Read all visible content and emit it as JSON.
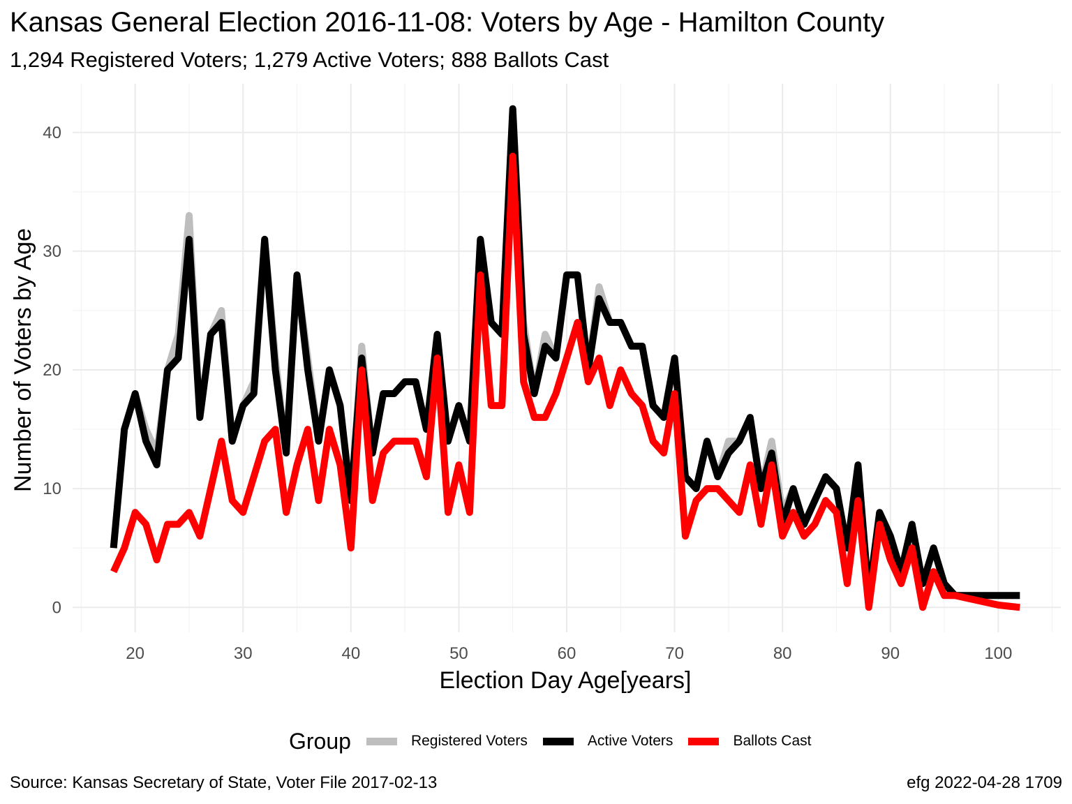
{
  "title": "Kansas General Election 2016-11-08:  Voters by Age - Hamilton County",
  "subtitle": "1,294 Registered Voters; 1,279 Active Voters; 888 Ballots Cast",
  "caption_left": "Source:  Kansas Secretary of State, Voter File  2017-02-13",
  "caption_right": "efg 2022-04-28 1709",
  "legend": {
    "title": "Group",
    "items": [
      {
        "label": "Registered Voters",
        "color": "#bebebe"
      },
      {
        "label": "Active Voters",
        "color": "#000000"
      },
      {
        "label": "Ballots Cast",
        "color": "#ff0000"
      }
    ]
  },
  "chart_data": {
    "type": "line",
    "xlabel": "Election Day Age[years]",
    "ylabel": "Number of Voters by Age",
    "xlim": [
      14.2,
      105.8
    ],
    "ylim": [
      -2.1,
      44.1
    ],
    "xticks": [
      20,
      30,
      40,
      50,
      60,
      70,
      80,
      90,
      100
    ],
    "yticks": [
      0,
      10,
      20,
      30,
      40
    ],
    "grid": true,
    "legend_position": "bottom",
    "x": [
      18,
      19,
      20,
      21,
      22,
      23,
      24,
      25,
      26,
      27,
      28,
      29,
      30,
      31,
      32,
      33,
      34,
      35,
      36,
      37,
      38,
      39,
      40,
      41,
      42,
      43,
      44,
      45,
      46,
      47,
      48,
      49,
      50,
      51,
      52,
      53,
      54,
      55,
      56,
      57,
      58,
      59,
      60,
      61,
      62,
      63,
      64,
      65,
      66,
      67,
      68,
      69,
      70,
      71,
      72,
      73,
      74,
      75,
      76,
      77,
      78,
      79,
      80,
      81,
      82,
      83,
      84,
      85,
      86,
      87,
      88,
      89,
      90,
      91,
      92,
      93,
      94,
      95,
      96,
      97,
      98,
      99,
      100,
      101,
      102
    ],
    "series": [
      {
        "name": "Registered Voters",
        "color": "#bebebe",
        "values": [
          5,
          15,
          18,
          15,
          13,
          20,
          23,
          33,
          16,
          23,
          25,
          14,
          17,
          19,
          31,
          21,
          13,
          28,
          21,
          14,
          20,
          17,
          9,
          22,
          13,
          18,
          18,
          19,
          19,
          15,
          23,
          14,
          17,
          14,
          31,
          24,
          23,
          42,
          24,
          18,
          23,
          21,
          28,
          28,
          20,
          27,
          24,
          24,
          22,
          22,
          17,
          16,
          21,
          11,
          10,
          14,
          11,
          14,
          14,
          16,
          10,
          14,
          8,
          10,
          7,
          9,
          11,
          10,
          5,
          12,
          1,
          8,
          6,
          3,
          7,
          2,
          5,
          2,
          1,
          1,
          1,
          1,
          1,
          1,
          1
        ]
      },
      {
        "name": "Active Voters",
        "color": "#000000",
        "values": [
          5,
          15,
          18,
          14,
          12,
          20,
          21,
          31,
          16,
          23,
          24,
          14,
          17,
          18,
          31,
          20,
          13,
          28,
          20,
          14,
          20,
          17,
          9,
          21,
          13,
          18,
          18,
          19,
          19,
          15,
          23,
          14,
          17,
          14,
          31,
          24,
          23,
          42,
          23,
          18,
          22,
          21,
          28,
          28,
          20,
          26,
          24,
          24,
          22,
          22,
          17,
          16,
          21,
          11,
          10,
          14,
          11,
          13,
          14,
          16,
          10,
          13,
          7,
          10,
          7,
          9,
          11,
          10,
          5,
          12,
          1,
          8,
          6,
          3,
          7,
          2,
          5,
          2,
          1,
          1,
          1,
          1,
          1,
          1,
          1
        ]
      },
      {
        "name": "Ballots Cast",
        "color": "#ff0000",
        "values": [
          3,
          5,
          8,
          7,
          4,
          7,
          7,
          8,
          6,
          10,
          14,
          9,
          8,
          11,
          14,
          15,
          8,
          12,
          15,
          9,
          15,
          12,
          5,
          20,
          9,
          13,
          14,
          14,
          14,
          11,
          21,
          8,
          12,
          8,
          28,
          17,
          17,
          38,
          19,
          16,
          16,
          18,
          21,
          24,
          19,
          21,
          17,
          20,
          18,
          17,
          14,
          13,
          18,
          6,
          9,
          10,
          10,
          9,
          8,
          12,
          7,
          12,
          6,
          8,
          6,
          7,
          9,
          8,
          2,
          9,
          0,
          7,
          4,
          2,
          5,
          0,
          3,
          1,
          1,
          0.8,
          0.6,
          0.4,
          0.2,
          0.1,
          0
        ]
      }
    ]
  }
}
